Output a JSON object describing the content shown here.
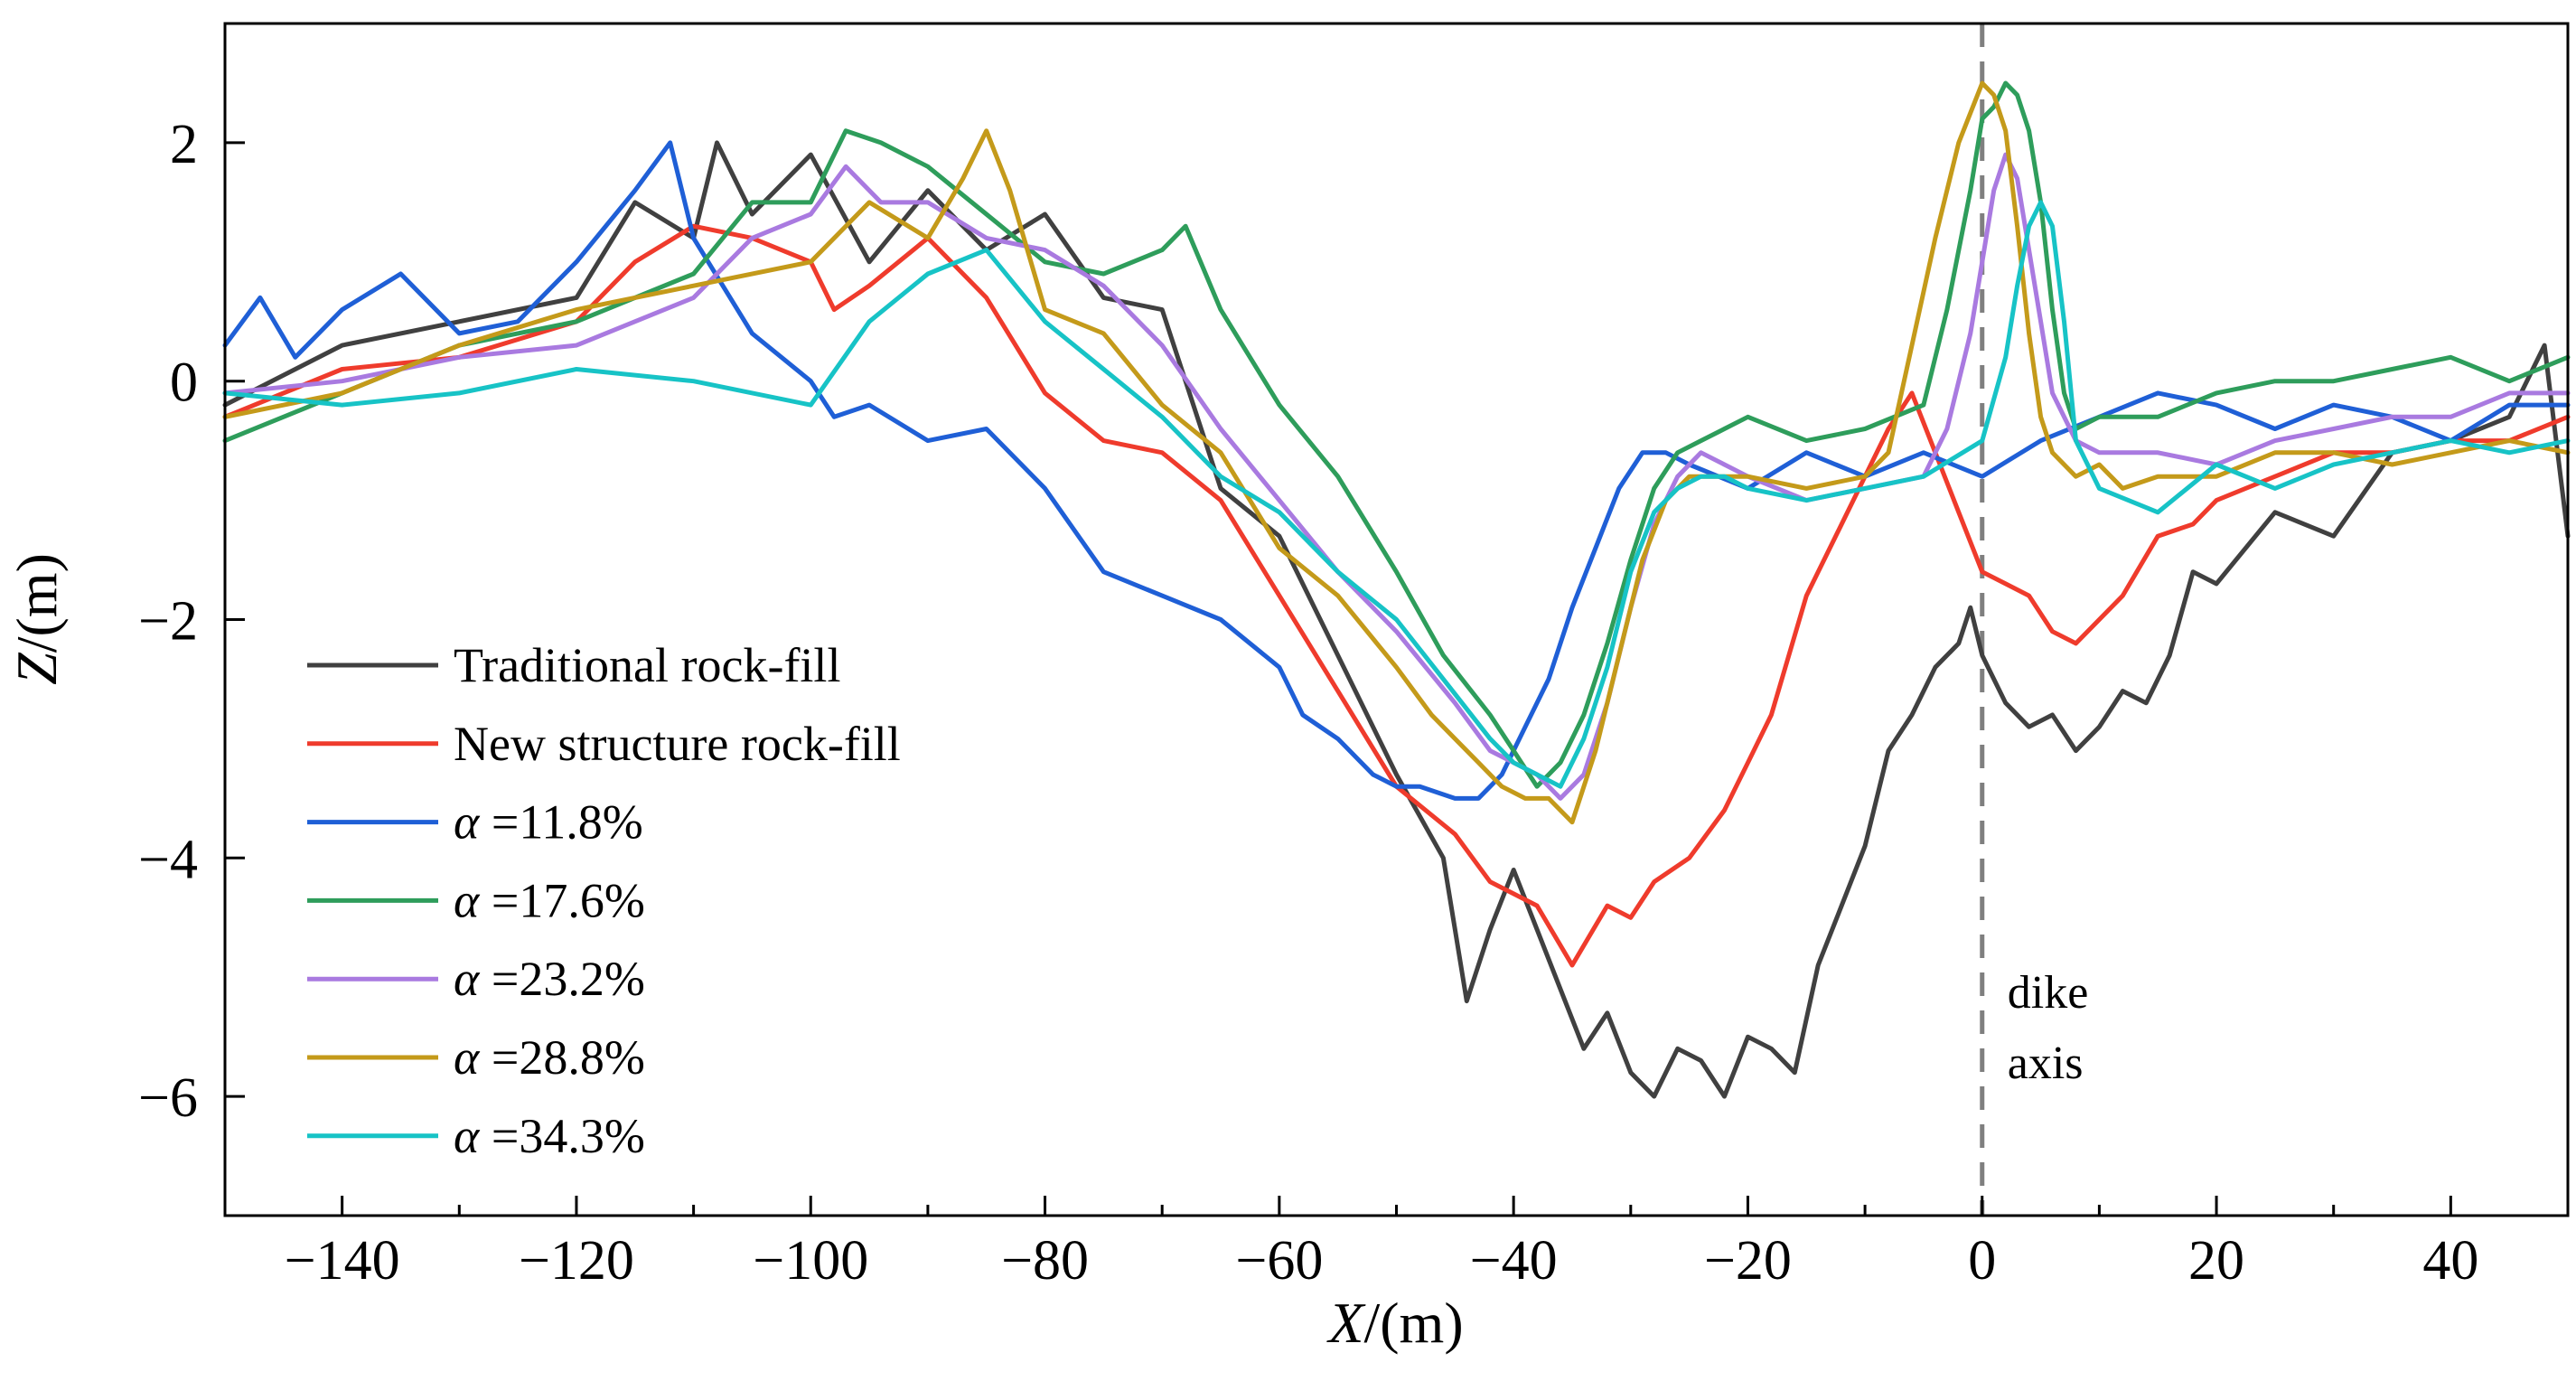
{
  "chart_data": {
    "type": "line",
    "title": "",
    "xlabel_var": "X",
    "xlabel_unit": "/(m)",
    "ylabel_var": "Z",
    "ylabel_unit": "/(m)",
    "xlim": [
      -150,
      50
    ],
    "ylim": [
      -7,
      3
    ],
    "xticks": [
      -140,
      -120,
      -100,
      -80,
      -60,
      -40,
      -20,
      0,
      20,
      40
    ],
    "yticks": [
      -6,
      -4,
      -2,
      0,
      2
    ],
    "minor_x_step": 10,
    "legend_position": "lower-left",
    "annotation": {
      "lines": [
        "dike",
        "axis"
      ],
      "x": 0,
      "line_color": "#7f7f7f"
    },
    "series": [
      {
        "name": "Traditional rock-fill",
        "symbol": "",
        "label": "Traditional rock-fill",
        "color": "#404040",
        "x": [
          -150,
          -140,
          -130,
          -120,
          -115,
          -110,
          -108,
          -105,
          -100,
          -95,
          -90,
          -85,
          -80,
          -75,
          -70,
          -65,
          -60,
          -55,
          -50,
          -46,
          -44,
          -42,
          -40,
          -38,
          -36,
          -34,
          -32,
          -30,
          -28,
          -26,
          -24,
          -22,
          -20,
          -18,
          -16,
          -14,
          -12,
          -10,
          -8,
          -6,
          -4,
          -2,
          -1,
          0,
          2,
          4,
          6,
          8,
          10,
          12,
          14,
          16,
          18,
          20,
          25,
          30,
          35,
          40,
          45,
          48,
          50
        ],
        "y": [
          -0.2,
          0.3,
          0.5,
          0.7,
          1.5,
          1.2,
          2.0,
          1.4,
          1.9,
          1.0,
          1.6,
          1.1,
          1.4,
          0.7,
          0.6,
          -0.9,
          -1.3,
          -2.3,
          -3.3,
          -4.0,
          -5.2,
          -4.6,
          -4.1,
          -4.6,
          -5.1,
          -5.6,
          -5.3,
          -5.8,
          -6.0,
          -5.6,
          -5.7,
          -6.0,
          -5.5,
          -5.6,
          -5.8,
          -4.9,
          -4.4,
          -3.9,
          -3.1,
          -2.8,
          -2.4,
          -2.2,
          -1.9,
          -2.3,
          -2.7,
          -2.9,
          -2.8,
          -3.1,
          -2.9,
          -2.6,
          -2.7,
          -2.3,
          -1.6,
          -1.7,
          -1.1,
          -1.3,
          -0.6,
          -0.5,
          -0.3,
          0.3,
          -1.3
        ]
      },
      {
        "name": "New structure rock-fill",
        "symbol": "",
        "label": "New structure rock-fill",
        "color": "#ef3b2c",
        "x": [
          -150,
          -140,
          -130,
          -120,
          -115,
          -110,
          -105,
          -100,
          -98,
          -95,
          -90,
          -85,
          -80,
          -75,
          -70,
          -65,
          -60,
          -55,
          -50,
          -45,
          -42,
          -40,
          -38,
          -35,
          -32,
          -30,
          -28,
          -25,
          -22,
          -20,
          -18,
          -15,
          -12,
          -10,
          -8,
          -6,
          -4,
          -2,
          0,
          2,
          4,
          6,
          8,
          10,
          12,
          15,
          18,
          20,
          25,
          30,
          35,
          40,
          45,
          50
        ],
        "y": [
          -0.3,
          0.1,
          0.2,
          0.5,
          1.0,
          1.3,
          1.2,
          1.0,
          0.6,
          0.8,
          1.2,
          0.7,
          -0.1,
          -0.5,
          -0.6,
          -1.0,
          -1.8,
          -2.6,
          -3.4,
          -3.8,
          -4.2,
          -4.3,
          -4.4,
          -4.9,
          -4.4,
          -4.5,
          -4.2,
          -4.0,
          -3.6,
          -3.2,
          -2.8,
          -1.8,
          -1.2,
          -0.8,
          -0.4,
          -0.1,
          -0.6,
          -1.1,
          -1.6,
          -1.7,
          -1.8,
          -2.1,
          -2.2,
          -2.0,
          -1.8,
          -1.3,
          -1.2,
          -1.0,
          -0.8,
          -0.6,
          -0.6,
          -0.5,
          -0.5,
          -0.3
        ]
      },
      {
        "name": "α =11.8%",
        "symbol": "α",
        "label": " =11.8%",
        "color": "#1f5fd6",
        "x": [
          -150,
          -147,
          -144,
          -140,
          -135,
          -130,
          -125,
          -120,
          -115,
          -112,
          -110,
          -105,
          -100,
          -98,
          -95,
          -90,
          -85,
          -80,
          -75,
          -70,
          -65,
          -60,
          -58,
          -55,
          -52,
          -50,
          -48,
          -45,
          -43,
          -41,
          -39,
          -37,
          -35,
          -33,
          -31,
          -29,
          -27,
          -25,
          -20,
          -15,
          -10,
          -5,
          0,
          5,
          10,
          15,
          20,
          25,
          30,
          35,
          40,
          45,
          50
        ],
        "y": [
          0.3,
          0.7,
          0.2,
          0.6,
          0.9,
          0.4,
          0.5,
          1.0,
          1.6,
          2.0,
          1.2,
          0.4,
          0.0,
          -0.3,
          -0.2,
          -0.5,
          -0.4,
          -0.9,
          -1.6,
          -1.8,
          -2.0,
          -2.4,
          -2.8,
          -3.0,
          -3.3,
          -3.4,
          -3.4,
          -3.5,
          -3.5,
          -3.3,
          -2.9,
          -2.5,
          -1.9,
          -1.4,
          -0.9,
          -0.6,
          -0.6,
          -0.7,
          -0.9,
          -0.6,
          -0.8,
          -0.6,
          -0.8,
          -0.5,
          -0.3,
          -0.1,
          -0.2,
          -0.4,
          -0.2,
          -0.3,
          -0.5,
          -0.2,
          -0.2
        ]
      },
      {
        "name": "α =17.6%",
        "symbol": "α",
        "label": " =17.6%",
        "color": "#2e9d5b",
        "x": [
          -150,
          -140,
          -130,
          -120,
          -110,
          -105,
          -100,
          -97,
          -94,
          -90,
          -85,
          -80,
          -75,
          -70,
          -68,
          -65,
          -60,
          -55,
          -50,
          -46,
          -42,
          -40,
          -38,
          -36,
          -34,
          -32,
          -30,
          -28,
          -26,
          -24,
          -22,
          -20,
          -15,
          -10,
          -5,
          -3,
          -1,
          0,
          1,
          2,
          3,
          4,
          5,
          6,
          7,
          8,
          10,
          15,
          20,
          25,
          30,
          35,
          40,
          45,
          50
        ],
        "y": [
          -0.5,
          -0.1,
          0.3,
          0.5,
          0.9,
          1.5,
          1.5,
          2.1,
          2.0,
          1.8,
          1.4,
          1.0,
          0.9,
          1.1,
          1.3,
          0.6,
          -0.2,
          -0.8,
          -1.6,
          -2.3,
          -2.8,
          -3.1,
          -3.4,
          -3.2,
          -2.8,
          -2.2,
          -1.5,
          -0.9,
          -0.6,
          -0.5,
          -0.4,
          -0.3,
          -0.5,
          -0.4,
          -0.2,
          0.6,
          1.6,
          2.2,
          2.3,
          2.5,
          2.4,
          2.1,
          1.5,
          0.6,
          -0.1,
          -0.4,
          -0.3,
          -0.3,
          -0.1,
          0.0,
          0.0,
          0.1,
          0.2,
          0.0,
          0.2
        ]
      },
      {
        "name": "α =23.2%",
        "symbol": "α",
        "label": " =23.2%",
        "color": "#a97ae0",
        "x": [
          -150,
          -140,
          -130,
          -120,
          -110,
          -105,
          -100,
          -97,
          -94,
          -90,
          -85,
          -80,
          -75,
          -70,
          -65,
          -60,
          -55,
          -50,
          -45,
          -42,
          -40,
          -38,
          -36,
          -34,
          -32,
          -30,
          -28,
          -26,
          -24,
          -22,
          -20,
          -15,
          -10,
          -5,
          -3,
          -1,
          0,
          1,
          2,
          3,
          4,
          5,
          6,
          8,
          10,
          15,
          20,
          25,
          30,
          35,
          40,
          45,
          50
        ],
        "y": [
          -0.1,
          0.0,
          0.2,
          0.3,
          0.7,
          1.2,
          1.4,
          1.8,
          1.5,
          1.5,
          1.2,
          1.1,
          0.8,
          0.3,
          -0.4,
          -1.0,
          -1.6,
          -2.1,
          -2.7,
          -3.1,
          -3.2,
          -3.3,
          -3.5,
          -3.3,
          -2.7,
          -1.9,
          -1.2,
          -0.8,
          -0.6,
          -0.7,
          -0.8,
          -1.0,
          -0.9,
          -0.8,
          -0.4,
          0.4,
          1.0,
          1.6,
          1.9,
          1.7,
          1.1,
          0.5,
          -0.1,
          -0.5,
          -0.6,
          -0.6,
          -0.7,
          -0.5,
          -0.4,
          -0.3,
          -0.3,
          -0.1,
          -0.1
        ]
      },
      {
        "name": "α =28.8%",
        "symbol": "α",
        "label": " =28.8%",
        "color": "#c49a1a",
        "x": [
          -150,
          -140,
          -130,
          -120,
          -110,
          -100,
          -95,
          -90,
          -87,
          -85,
          -83,
          -80,
          -75,
          -70,
          -65,
          -60,
          -55,
          -50,
          -47,
          -45,
          -43,
          -41,
          -39,
          -37,
          -35,
          -33,
          -31,
          -29,
          -27,
          -25,
          -20,
          -15,
          -10,
          -8,
          -6,
          -4,
          -2,
          0,
          1,
          2,
          3,
          4,
          5,
          6,
          8,
          10,
          12,
          15,
          20,
          25,
          30,
          35,
          40,
          45,
          50
        ],
        "y": [
          -0.3,
          -0.1,
          0.3,
          0.6,
          0.8,
          1.0,
          1.5,
          1.2,
          1.7,
          2.1,
          1.6,
          0.6,
          0.4,
          -0.2,
          -0.6,
          -1.4,
          -1.8,
          -2.4,
          -2.8,
          -3.0,
          -3.2,
          -3.4,
          -3.5,
          -3.5,
          -3.7,
          -3.1,
          -2.3,
          -1.5,
          -1.0,
          -0.8,
          -0.8,
          -0.9,
          -0.8,
          -0.6,
          0.3,
          1.2,
          2.0,
          2.5,
          2.4,
          2.1,
          1.3,
          0.4,
          -0.3,
          -0.6,
          -0.8,
          -0.7,
          -0.9,
          -0.8,
          -0.8,
          -0.6,
          -0.6,
          -0.7,
          -0.6,
          -0.5,
          -0.6
        ]
      },
      {
        "name": "α =34.3%",
        "symbol": "α",
        "label": " =34.3%",
        "color": "#17c3c6",
        "x": [
          -150,
          -140,
          -130,
          -120,
          -110,
          -100,
          -95,
          -90,
          -85,
          -80,
          -75,
          -70,
          -65,
          -60,
          -55,
          -50,
          -46,
          -42,
          -40,
          -38,
          -36,
          -34,
          -32,
          -30,
          -28,
          -26,
          -24,
          -22,
          -20,
          -15,
          -10,
          -5,
          0,
          2,
          3,
          4,
          5,
          6,
          7,
          8,
          10,
          15,
          20,
          25,
          30,
          35,
          40,
          45,
          50
        ],
        "y": [
          -0.1,
          -0.2,
          -0.1,
          0.1,
          0.0,
          -0.2,
          0.5,
          0.9,
          1.1,
          0.5,
          0.1,
          -0.3,
          -0.8,
          -1.1,
          -1.6,
          -2.0,
          -2.5,
          -3.0,
          -3.2,
          -3.3,
          -3.4,
          -3.0,
          -2.4,
          -1.6,
          -1.1,
          -0.9,
          -0.8,
          -0.8,
          -0.9,
          -1.0,
          -0.9,
          -0.8,
          -0.5,
          0.2,
          0.8,
          1.3,
          1.5,
          1.3,
          0.5,
          -0.5,
          -0.9,
          -1.1,
          -0.7,
          -0.9,
          -0.7,
          -0.6,
          -0.5,
          -0.6,
          -0.5
        ]
      }
    ]
  }
}
